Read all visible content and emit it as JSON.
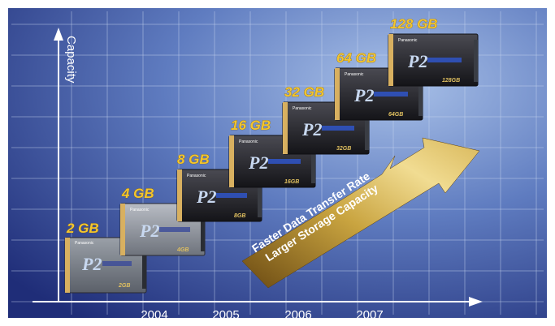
{
  "y_axis": {
    "label": "Capacity"
  },
  "x_axis": {
    "ticks": [
      "2004",
      "2005",
      "2006",
      "2007"
    ]
  },
  "cards": [
    {
      "capacity": "2 GB",
      "brand": "Panasonic",
      "logo": "P2",
      "mark": "2GB"
    },
    {
      "capacity": "4 GB",
      "brand": "Panasonic",
      "logo": "P2",
      "mark": "4GB"
    },
    {
      "capacity": "8 GB",
      "brand": "Panasonic",
      "logo": "P2",
      "mark": "8GB"
    },
    {
      "capacity": "16 GB",
      "brand": "Panasonic",
      "logo": "P2",
      "mark": "16GB"
    },
    {
      "capacity": "32 GB",
      "brand": "Panasonic",
      "logo": "P2",
      "mark": "32GB"
    },
    {
      "capacity": "64 GB",
      "brand": "Panasonic",
      "logo": "P2",
      "mark": "64GB"
    },
    {
      "capacity": "128 GB",
      "brand": "Panasonic",
      "logo": "P2",
      "mark": "128GB"
    }
  ],
  "arrow": {
    "line1": "Faster Data Transfer Rate",
    "line2": "Larger Storage Capacity"
  },
  "colors": {
    "background_dark": "#1f2d78",
    "background_light": "#8fa9d8",
    "label": "#f2c530",
    "arrow_gold": "#c9a440"
  }
}
